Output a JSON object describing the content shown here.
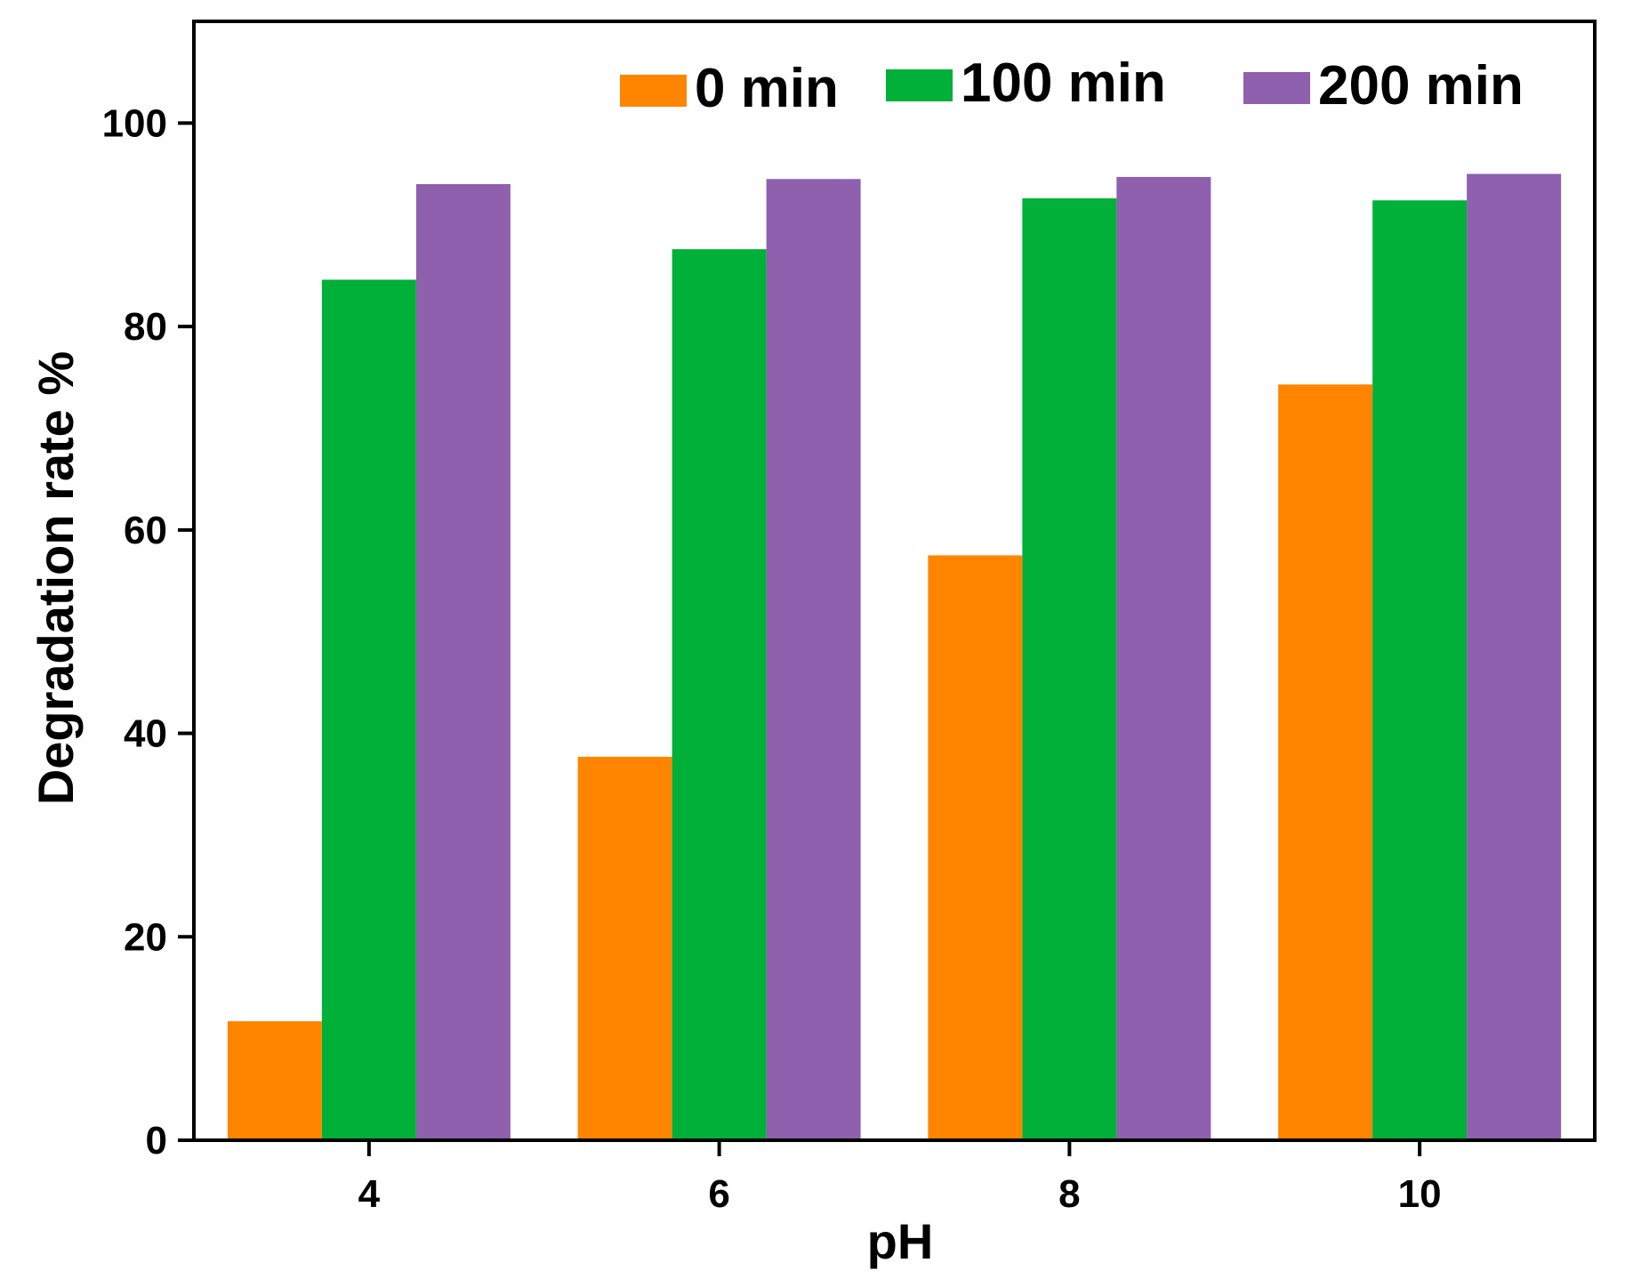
{
  "chart_data": {
    "type": "bar",
    "title": "",
    "xlabel": "pH",
    "ylabel": "Degradation rate %",
    "categories": [
      "4",
      "6",
      "8",
      "10"
    ],
    "series": [
      {
        "name": "0 min",
        "color": "#FF8500",
        "values": [
          11.7,
          37.7,
          57.5,
          74.3
        ]
      },
      {
        "name": "100 min",
        "color": "#00B038",
        "values": [
          84.6,
          87.6,
          92.6,
          92.4
        ]
      },
      {
        "name": "200 min",
        "color": "#8E60AE",
        "values": [
          94.0,
          94.5,
          94.7,
          95.0
        ]
      }
    ],
    "ylim": [
      0,
      110
    ],
    "yticks": [
      "0",
      "20",
      "40",
      "60",
      "80",
      "100"
    ],
    "legend_position": "top-right",
    "grid": false
  }
}
